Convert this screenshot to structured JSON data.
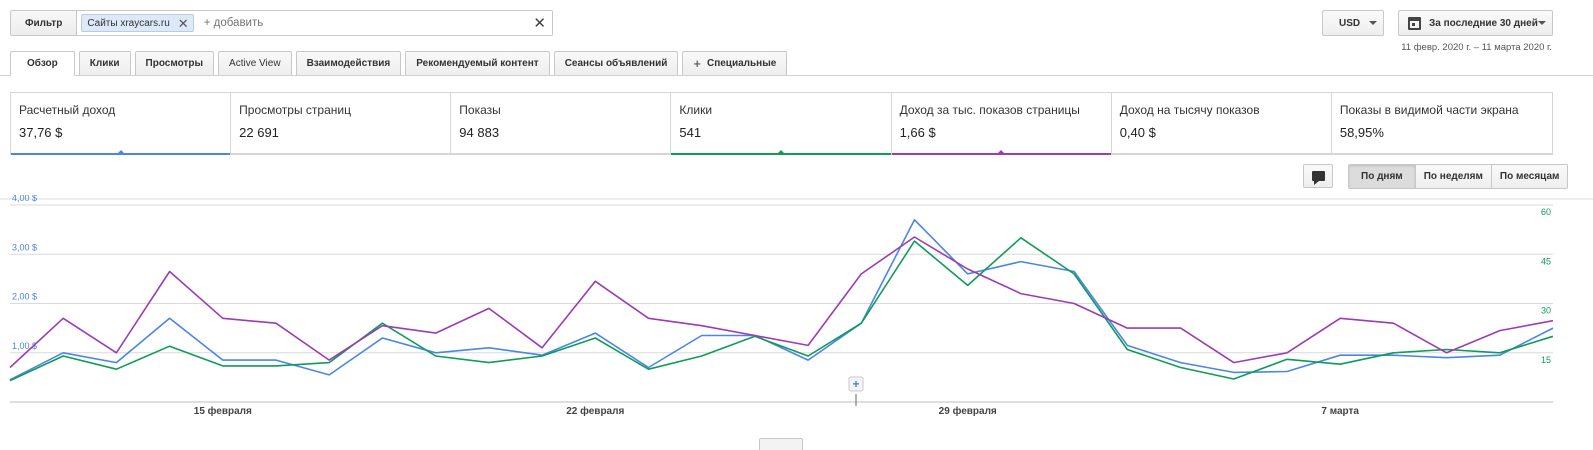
{
  "filter": {
    "button_label": "Фильтр",
    "chip_label": "Сайты xraycars.ru",
    "add_placeholder": "+ добавить"
  },
  "currency": {
    "value": "USD"
  },
  "daterange": {
    "label": "За последние 30 дней",
    "subtitle": "11 февр. 2020 г. – 11 марта 2020 г."
  },
  "tabs": [
    {
      "label": "Обзор"
    },
    {
      "label": "Клики"
    },
    {
      "label": "Просмотры"
    },
    {
      "label": "Active View"
    },
    {
      "label": "Взаимодействия"
    },
    {
      "label": "Рекомендуемый контент"
    },
    {
      "label": "Сеансы объявлений"
    },
    {
      "label": "Специальные"
    }
  ],
  "scorecards": [
    {
      "label": "Расчетный доход",
      "value": "37,76 $",
      "color": "#4a86e8"
    },
    {
      "label": "Просмотры страниц",
      "value": "22 691",
      "color": ""
    },
    {
      "label": "Показы",
      "value": "94 883",
      "color": ""
    },
    {
      "label": "Клики",
      "value": "541",
      "color": "#109b58"
    },
    {
      "label": "Доход за тыс. показов страницы",
      "value": "1,66 $",
      "color": "#9c3cb5"
    },
    {
      "label": "Доход на тысячу показов",
      "value": "0,40 $",
      "color": ""
    },
    {
      "label": "Показы в видимой части экрана",
      "value": "58,95%",
      "color": ""
    }
  ],
  "granularity": [
    {
      "label": "По дням",
      "active": true
    },
    {
      "label": "По неделям",
      "active": false
    },
    {
      "label": "По месяцам",
      "active": false
    }
  ],
  "chart_data": {
    "type": "line",
    "title": "",
    "x": [
      "11.02",
      "12.02",
      "13.02",
      "14.02",
      "15.02",
      "16.02",
      "17.02",
      "18.02",
      "19.02",
      "20.02",
      "21.02",
      "22.02",
      "23.02",
      "24.02",
      "25.02",
      "26.02",
      "27.02",
      "28.02",
      "29.02",
      "01.03",
      "02.03",
      "03.03",
      "04.03",
      "05.03",
      "06.03",
      "07.03",
      "08.03",
      "09.03",
      "10.03",
      "11.03"
    ],
    "x_tick_labels": [
      {
        "label": "15 февраля",
        "index": 4
      },
      {
        "label": "22 февраля",
        "index": 11
      },
      {
        "label": "29 февраля",
        "index": 18
      },
      {
        "label": "7 марта",
        "index": 25
      }
    ],
    "y_left": {
      "ticks": [
        "1,00 $",
        "2,00 $",
        "3,00 $",
        "4,00 $"
      ],
      "tick_values": [
        1,
        2,
        3,
        4
      ],
      "range": [
        0,
        4
      ],
      "color": "#4a86e8"
    },
    "y_right": {
      "ticks": [
        "15",
        "30",
        "45",
        "60"
      ],
      "tick_values": [
        15,
        30,
        45,
        60
      ],
      "range": [
        0,
        60
      ],
      "color": "#109b58"
    },
    "grid": true,
    "legend": "none",
    "series": [
      {
        "axis": "left",
        "color": "#4a86e8",
        "values": [
          0.45,
          1.0,
          0.8,
          1.7,
          0.85,
          0.85,
          0.55,
          1.3,
          1.0,
          1.1,
          0.95,
          1.4,
          0.7,
          1.35,
          1.35,
          0.85,
          1.6,
          3.7,
          2.6,
          2.85,
          2.65,
          1.15,
          0.8,
          0.6,
          0.62,
          0.95,
          0.95,
          0.9,
          0.95,
          1.5
        ]
      },
      {
        "axis": "right",
        "color": "#109b58",
        "values": [
          6.5,
          14,
          10,
          17,
          11,
          11,
          12,
          24,
          14,
          12,
          14,
          19.5,
          10,
          14,
          20,
          14,
          24,
          49,
          35.5,
          50,
          39,
          16,
          10.5,
          7,
          13,
          11.5,
          15,
          16,
          15,
          20
        ]
      },
      {
        "axis": "left",
        "color": "#9c3cb5",
        "values": [
          0.7,
          1.7,
          1.0,
          2.65,
          1.7,
          1.6,
          0.85,
          1.55,
          1.4,
          1.9,
          1.1,
          2.45,
          1.7,
          1.55,
          1.35,
          1.15,
          2.6,
          3.35,
          2.7,
          2.2,
          2.0,
          1.5,
          1.5,
          0.8,
          1.0,
          1.7,
          1.6,
          1.0,
          1.45,
          1.65
        ]
      }
    ]
  }
}
